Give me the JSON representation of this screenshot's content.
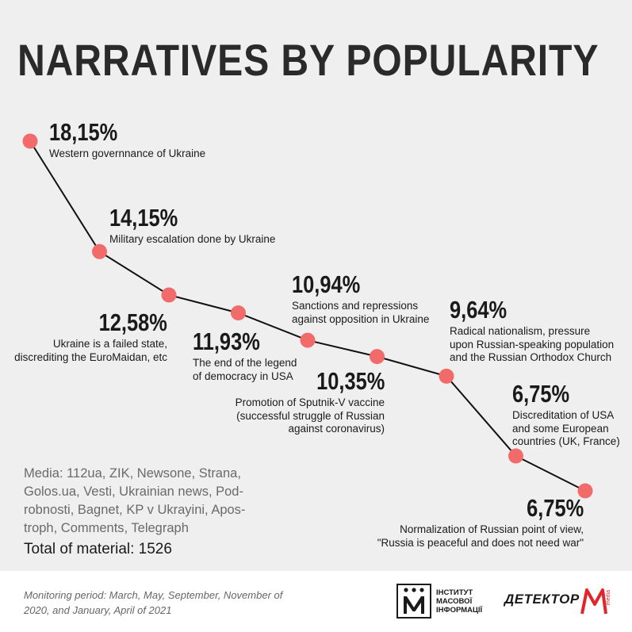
{
  "title": "NARRATIVES BY POPULARITY",
  "chart_data": {
    "type": "line",
    "points": [
      {
        "value": "18,15%",
        "label": "Western governnance of Ukraine"
      },
      {
        "value": "14,15%",
        "label": "Military escalation done by Ukraine"
      },
      {
        "value": "12,58%",
        "label": "Ukraine is a failed state,\ndiscrediting the EuroMaidan, etc"
      },
      {
        "value": "11,93%",
        "label": "The end of the legend\nof democracy in USA"
      },
      {
        "value": "10,94%",
        "label": "Sanctions and repressions\nagainst opposition in Ukraine"
      },
      {
        "value": "10,35%",
        "label": "Promotion of Sputnik-V vaccine\n(successful struggle of Russian\nagainst coronavirus)"
      },
      {
        "value": "9,64%",
        "label": "Radical nationalism, pressure\nupon Russian-speaking population\nand the Russian Orthodox Church"
      },
      {
        "value": "6,75%",
        "label": "Discreditation of USA\nand some European\ncountries (UK, France)"
      },
      {
        "value": "6,75%",
        "label": "Normalization of Russian point of view,\n\"Russia is peaceful and does not need war\""
      }
    ],
    "marker_color": "#f26b6b",
    "line_color": "#111111"
  },
  "media": "Media: 112ua, ZIK, Newsone, Strana,\nGolos.ua, Vesti, Ukrainian news, Pod-\nrobnosti, Bagnet, KP v Ukrayini, Apos-\ntroph, Comments, Telegraph",
  "total": "Total of material: 1526",
  "period": "Monitoring period: March, May, September, November of\n2020, and January, April of 2021",
  "logos": {
    "imi": "ІНСТИТУТ\nМАСОВОЇ\nІНФОРМАЦІЇ",
    "detektor": "ДЕТЕКТОР",
    "detektor_sub": "media"
  },
  "colors": {
    "background": "#efefef",
    "accent": "#e0262b"
  }
}
